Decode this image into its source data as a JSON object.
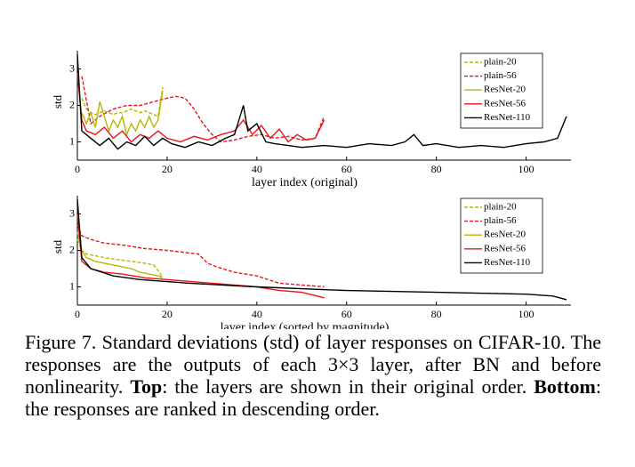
{
  "chart_data": [
    {
      "type": "line",
      "xlabel": "layer index (original)",
      "ylabel": "std",
      "xlim": [
        0,
        110
      ],
      "ylim": [
        0.5,
        3.5
      ],
      "xticks": [
        0,
        20,
        40,
        60,
        80,
        100
      ],
      "yticks": [
        1,
        2,
        3
      ],
      "legend": "upper right",
      "series": [
        {
          "name": "plain-20",
          "color": "#b9b600",
          "dash": true,
          "x": [
            1,
            2,
            3,
            4,
            5,
            6,
            7,
            8,
            9,
            10,
            11,
            12,
            13,
            14,
            15,
            16,
            17,
            18,
            19
          ],
          "values": [
            2.2,
            1.9,
            1.8,
            1.75,
            1.8,
            1.85,
            1.8,
            1.75,
            1.8,
            1.8,
            1.85,
            1.9,
            1.85,
            1.8,
            1.85,
            1.8,
            1.75,
            1.7,
            2.5
          ]
        },
        {
          "name": "plain-56",
          "color": "#e8141b",
          "dash": true,
          "x": [
            1,
            3,
            5,
            8,
            11,
            14,
            17,
            20,
            22,
            24,
            26,
            28,
            30,
            32,
            35,
            38,
            41,
            44,
            47,
            50,
            53,
            55
          ],
          "values": [
            2.8,
            1.5,
            1.7,
            1.9,
            2.0,
            2.0,
            2.1,
            2.2,
            2.25,
            2.2,
            1.9,
            1.5,
            1.2,
            1.0,
            1.05,
            1.15,
            1.2,
            1.1,
            1.15,
            1.05,
            1.1,
            1.7
          ]
        },
        {
          "name": "ResNet-20",
          "color": "#b9b600",
          "dash": false,
          "x": [
            1,
            2,
            3,
            4,
            5,
            6,
            7,
            8,
            9,
            10,
            11,
            12,
            13,
            14,
            15,
            16,
            17,
            18,
            19
          ],
          "values": [
            1.8,
            1.5,
            1.8,
            1.4,
            2.1,
            1.7,
            1.3,
            1.6,
            1.4,
            1.7,
            1.2,
            1.5,
            1.3,
            1.6,
            1.4,
            1.7,
            1.4,
            1.6,
            2.4
          ]
        },
        {
          "name": "ResNet-56",
          "color": "#e8141b",
          "dash": false,
          "x": [
            0,
            1,
            2,
            4,
            6,
            8,
            10,
            12,
            14,
            16,
            18,
            20,
            23,
            26,
            29,
            32,
            35,
            37,
            39,
            41,
            43,
            45,
            47,
            49,
            51,
            53,
            55
          ],
          "values": [
            2.9,
            1.6,
            1.3,
            1.2,
            1.4,
            1.1,
            1.3,
            1.0,
            1.2,
            1.1,
            1.3,
            1.1,
            1.0,
            1.15,
            1.05,
            1.2,
            1.3,
            1.6,
            1.2,
            1.45,
            1.1,
            1.35,
            1.0,
            1.2,
            1.05,
            1.1,
            1.6
          ]
        },
        {
          "name": "ResNet-110",
          "color": "#000000",
          "dash": false,
          "x": [
            0,
            1,
            3,
            5,
            7,
            9,
            11,
            13,
            15,
            17,
            19,
            21,
            24,
            27,
            30,
            33,
            35,
            37,
            38,
            40,
            42,
            44,
            47,
            50,
            55,
            60,
            65,
            70,
            73,
            75,
            77,
            80,
            85,
            90,
            95,
            100,
            104,
            107,
            109
          ],
          "values": [
            3.4,
            1.3,
            1.1,
            0.9,
            1.1,
            0.8,
            1.0,
            0.9,
            1.15,
            0.9,
            1.1,
            0.95,
            0.85,
            1.0,
            0.9,
            1.1,
            1.2,
            2.0,
            1.3,
            1.5,
            1.0,
            0.95,
            0.9,
            0.85,
            0.9,
            0.85,
            0.95,
            0.9,
            1.0,
            1.2,
            0.9,
            0.95,
            0.85,
            0.9,
            0.85,
            0.95,
            1.0,
            1.1,
            1.7
          ]
        }
      ]
    },
    {
      "type": "line",
      "xlabel": "layer index (sorted by magnitude)",
      "ylabel": "std",
      "xlim": [
        0,
        110
      ],
      "ylim": [
        0.5,
        3.5
      ],
      "xticks": [
        0,
        20,
        40,
        60,
        80,
        100
      ],
      "yticks": [
        1,
        2,
        3
      ],
      "legend": "upper right",
      "series": [
        {
          "name": "plain-20",
          "color": "#b9b600",
          "dash": true,
          "x": [
            0,
            1,
            2,
            4,
            6,
            9,
            12,
            15,
            17,
            18,
            19
          ],
          "values": [
            2.3,
            2.0,
            1.9,
            1.85,
            1.8,
            1.75,
            1.7,
            1.65,
            1.6,
            1.45,
            1.25
          ]
        },
        {
          "name": "plain-56",
          "color": "#e8141b",
          "dash": true,
          "x": [
            0,
            1,
            3,
            6,
            10,
            15,
            20,
            27,
            29,
            31,
            35,
            40,
            45,
            50,
            55
          ],
          "values": [
            2.7,
            2.4,
            2.3,
            2.2,
            2.15,
            2.05,
            2.0,
            1.9,
            1.65,
            1.55,
            1.4,
            1.3,
            1.1,
            1.05,
            1.0
          ]
        },
        {
          "name": "ResNet-20",
          "color": "#b9b600",
          "dash": false,
          "x": [
            0,
            1,
            2,
            4,
            8,
            12,
            14,
            16,
            18,
            19
          ],
          "values": [
            2.5,
            2.0,
            1.8,
            1.7,
            1.6,
            1.5,
            1.4,
            1.35,
            1.3,
            1.25
          ]
        },
        {
          "name": "ResNet-56",
          "color": "#e8141b",
          "dash": false,
          "x": [
            0,
            1,
            3,
            6,
            10,
            15,
            20,
            30,
            40,
            45,
            50,
            55
          ],
          "values": [
            3.0,
            1.7,
            1.5,
            1.4,
            1.35,
            1.25,
            1.2,
            1.1,
            1.0,
            0.9,
            0.85,
            0.7
          ]
        },
        {
          "name": "ResNet-110",
          "color": "#000000",
          "dash": false,
          "x": [
            0,
            1,
            3,
            8,
            14,
            25,
            40,
            60,
            80,
            100,
            106,
            109
          ],
          "values": [
            3.4,
            1.8,
            1.5,
            1.3,
            1.2,
            1.1,
            1.0,
            0.9,
            0.85,
            0.8,
            0.75,
            0.65
          ]
        }
      ]
    }
  ],
  "caption": [
    "Figure 7. Standard deviations (std) of layer responses on CIFAR-10. The responses are the outputs of each 3×3 layer, after BN and before nonlinearity. ",
    "Top",
    ": the layers are shown in their original order. ",
    "Bottom",
    ": the responses are ranked in descending order."
  ]
}
